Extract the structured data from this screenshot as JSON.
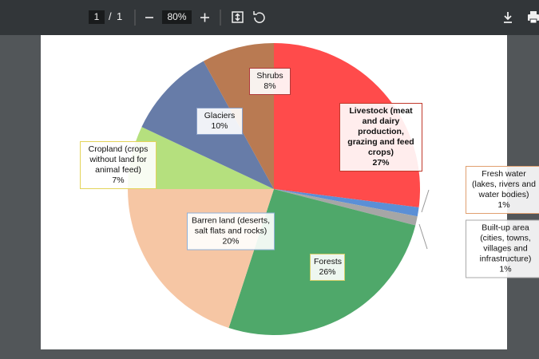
{
  "toolbar": {
    "page": "1",
    "separator": "/",
    "total": "1",
    "zoom": "80%"
  },
  "chart_data": {
    "type": "pie",
    "categories": [
      "Livestock (meat and dairy production, grazing and feed crops)",
      "Fresh water (lakes, rivers and water bodies)",
      "Built-up area (cities, towns, villages and infrastructure)",
      "Forests",
      "Barren land (deserts, salt flats and rocks)",
      "Cropland (crops without land for animal feed)",
      "Glaciers",
      "Shrubs"
    ],
    "values": [
      27,
      1,
      1,
      26,
      20,
      7,
      10,
      8
    ],
    "value_labels": [
      "27%",
      "1%",
      "1%",
      "26%",
      "20%",
      "7%",
      "10%",
      "8%"
    ],
    "colors": [
      "#ff4b4b",
      "#5b8fd6",
      "#a6a6a6",
      "#4fa86a",
      "#f6c6a4",
      "#b5e07e",
      "#677ca8",
      "#b97a52"
    ]
  }
}
